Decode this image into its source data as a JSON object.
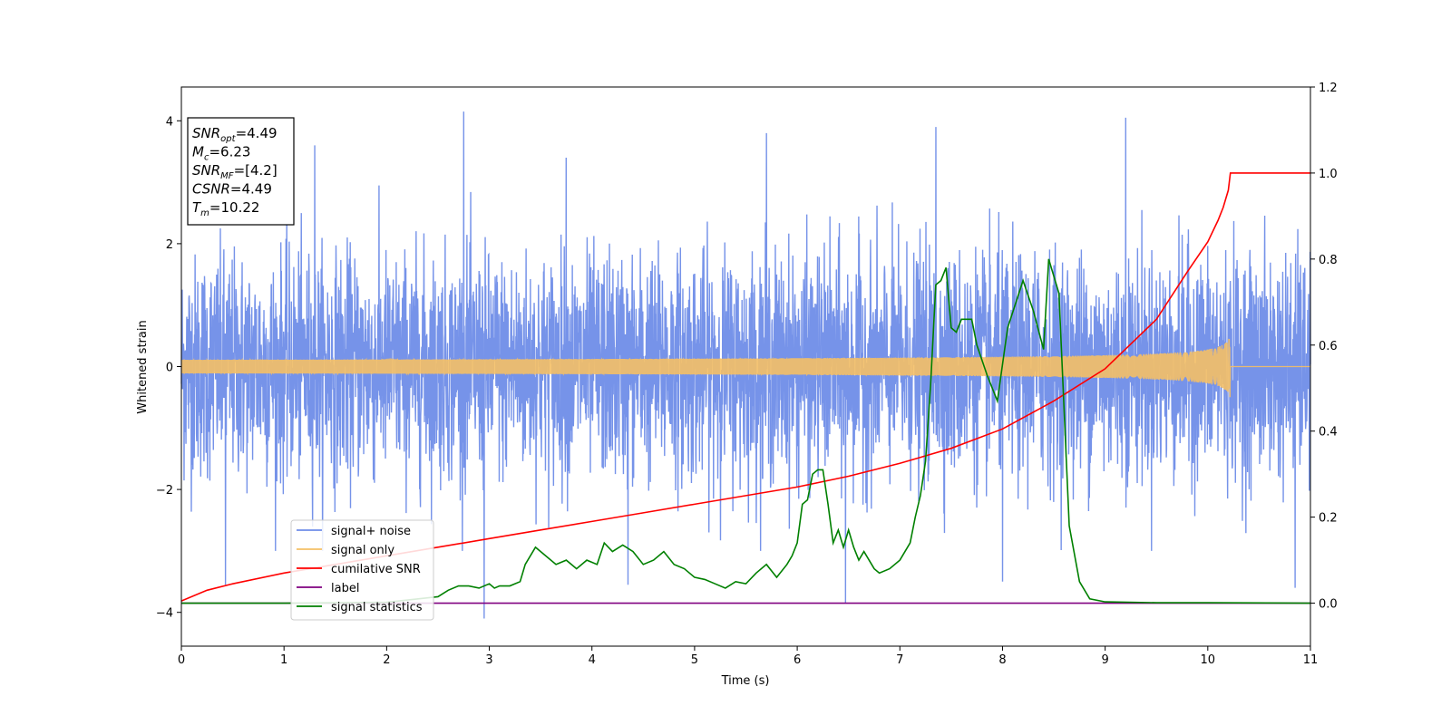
{
  "chart_data": {
    "type": "line",
    "xlabel": "Time (s)",
    "ylabel": "Whitened strain",
    "xlim": [
      0,
      11
    ],
    "ylim_left": [
      -4.55,
      4.55
    ],
    "ylim_right": [
      -0.1,
      1.2
    ],
    "x_ticks": [
      0,
      1,
      2,
      3,
      4,
      5,
      6,
      7,
      8,
      9,
      10,
      11
    ],
    "y_ticks_left": [
      -4,
      -2,
      0,
      2,
      4
    ],
    "y_ticks_right": [
      0.0,
      0.2,
      0.4,
      0.6,
      0.8,
      1.0,
      1.2
    ],
    "x_tick_labels": [
      "0",
      "1",
      "2",
      "3",
      "4",
      "5",
      "6",
      "7",
      "8",
      "9",
      "10",
      "11"
    ],
    "y_tick_labels_left": [
      "−4",
      "−2",
      "0",
      "2",
      "4"
    ],
    "y_tick_labels_right": [
      "0.0",
      "0.2",
      "0.4",
      "0.6",
      "0.8",
      "1.0",
      "1.2"
    ],
    "grid": false,
    "legend_position": "lower-left",
    "annotation": {
      "lines": [
        {
          "base": "SNR",
          "sub": "opt",
          "value": "=4.49"
        },
        {
          "base": "M",
          "sub": "c",
          "value": "=6.23"
        },
        {
          "base": "SNR",
          "sub": "MF",
          "value": "=[4.2]"
        },
        {
          "base": "CSNR",
          "sub": "",
          "value": "=4.49"
        },
        {
          "base": "T",
          "sub": "m",
          "value": "=10.22"
        }
      ]
    },
    "series": [
      {
        "name": "signal+ noise",
        "color": "#6f8de8",
        "axis": "left",
        "kind": "noise",
        "core_amplitude": 1.8,
        "peaks": [
          [
            2.75,
            4.15
          ],
          [
            2.95,
            -4.1
          ],
          [
            9.2,
            4.05
          ],
          [
            1.3,
            3.6
          ],
          [
            5.7,
            3.8
          ],
          [
            7.35,
            3.9
          ],
          [
            0.43,
            -3.55
          ],
          [
            10.85,
            -3.6
          ],
          [
            6.47,
            -3.85
          ],
          [
            4.35,
            -3.55
          ],
          [
            8.0,
            -3.5
          ],
          [
            3.75,
            3.4
          ]
        ]
      },
      {
        "name": "signal only",
        "color": "#f5c066",
        "axis": "left",
        "kind": "chirp",
        "merger_time": 10.22,
        "peak_amplitude": 0.55
      },
      {
        "name": "cumilative SNR",
        "color": "#ff0000",
        "axis": "right",
        "x": [
          0,
          0.25,
          0.5,
          1,
          1.5,
          2,
          2.5,
          3,
          3.5,
          4,
          4.5,
          5,
          5.5,
          6,
          6.5,
          7,
          7.5,
          8,
          8.5,
          9,
          9.5,
          9.8,
          10.0,
          10.1,
          10.15,
          10.2,
          10.22,
          10.5,
          11
        ],
        "y": [
          0.005,
          0.03,
          0.045,
          0.07,
          0.09,
          0.11,
          0.13,
          0.15,
          0.17,
          0.19,
          0.21,
          0.23,
          0.25,
          0.27,
          0.295,
          0.325,
          0.36,
          0.405,
          0.47,
          0.545,
          0.66,
          0.77,
          0.84,
          0.89,
          0.92,
          0.96,
          1.0,
          1.0,
          1.0
        ]
      },
      {
        "name": "label",
        "color": "#800080",
        "axis": "right",
        "x": [
          0,
          11
        ],
        "y": [
          0.0,
          0.0
        ]
      },
      {
        "name": "signal statistics",
        "color": "#008000",
        "axis": "right",
        "x": [
          0,
          1,
          2,
          2.5,
          2.6,
          2.7,
          2.8,
          2.9,
          3.0,
          3.05,
          3.1,
          3.2,
          3.3,
          3.35,
          3.45,
          3.55,
          3.65,
          3.75,
          3.85,
          3.95,
          4.05,
          4.12,
          4.2,
          4.3,
          4.4,
          4.5,
          4.6,
          4.7,
          4.8,
          4.9,
          5.0,
          5.1,
          5.2,
          5.3,
          5.4,
          5.5,
          5.6,
          5.7,
          5.8,
          5.9,
          5.95,
          6.0,
          6.05,
          6.1,
          6.15,
          6.2,
          6.25,
          6.3,
          6.35,
          6.4,
          6.45,
          6.5,
          6.55,
          6.6,
          6.65,
          6.7,
          6.75,
          6.8,
          6.9,
          7.0,
          7.1,
          7.15,
          7.2,
          7.25,
          7.3,
          7.35,
          7.4,
          7.45,
          7.5,
          7.55,
          7.6,
          7.7,
          7.75,
          7.85,
          7.95,
          8.05,
          8.2,
          8.3,
          8.4,
          8.45,
          8.55,
          8.65,
          8.75,
          8.85,
          9.0,
          9.5,
          10,
          11
        ],
        "y": [
          0.0,
          0.0,
          0.002,
          0.015,
          0.03,
          0.04,
          0.04,
          0.035,
          0.045,
          0.035,
          0.04,
          0.04,
          0.05,
          0.09,
          0.13,
          0.11,
          0.09,
          0.1,
          0.08,
          0.1,
          0.09,
          0.14,
          0.12,
          0.135,
          0.12,
          0.09,
          0.1,
          0.12,
          0.09,
          0.08,
          0.06,
          0.055,
          0.045,
          0.035,
          0.05,
          0.045,
          0.07,
          0.09,
          0.06,
          0.09,
          0.11,
          0.14,
          0.23,
          0.24,
          0.3,
          0.31,
          0.31,
          0.23,
          0.14,
          0.17,
          0.13,
          0.17,
          0.13,
          0.1,
          0.12,
          0.1,
          0.08,
          0.07,
          0.08,
          0.1,
          0.14,
          0.2,
          0.25,
          0.33,
          0.51,
          0.74,
          0.75,
          0.78,
          0.64,
          0.63,
          0.66,
          0.66,
          0.6,
          0.53,
          0.47,
          0.64,
          0.75,
          0.68,
          0.59,
          0.8,
          0.72,
          0.18,
          0.05,
          0.01,
          0.003,
          0.001,
          0.001,
          0.0
        ]
      }
    ]
  }
}
